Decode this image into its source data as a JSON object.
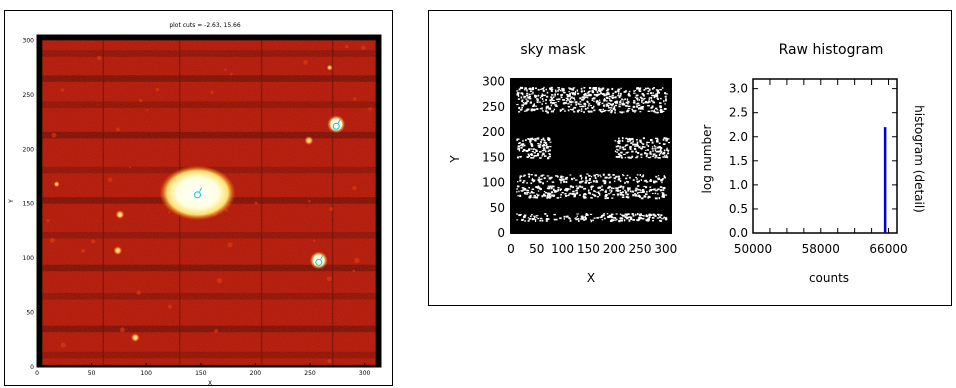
{
  "chart_data": [
    {
      "type": "image",
      "title": "plot cuts = -2.63, 15.66",
      "xlabel": "X",
      "ylabel": "Y",
      "xlim": [
        0,
        315
      ],
      "ylim": [
        0,
        305
      ],
      "xticks": [
        0,
        50,
        100,
        150,
        200,
        250,
        300
      ],
      "yticks": [
        0,
        50,
        100,
        150,
        200,
        250,
        300
      ],
      "colormap": "red heat",
      "sources": [
        {
          "x": 147,
          "y": 160,
          "size": "large",
          "marked": true
        },
        {
          "x": 274,
          "y": 223,
          "size": "medium",
          "marked": true
        },
        {
          "x": 258,
          "y": 98,
          "size": "medium",
          "marked": true
        },
        {
          "x": 249,
          "y": 208,
          "size": "small",
          "marked": false
        },
        {
          "x": 76,
          "y": 140,
          "size": "small",
          "marked": false
        },
        {
          "x": 74,
          "y": 107,
          "size": "small",
          "marked": false
        },
        {
          "x": 90,
          "y": 27,
          "size": "small",
          "marked": false
        },
        {
          "x": 268,
          "y": 275,
          "size": "tiny",
          "marked": false
        },
        {
          "x": 18,
          "y": 168,
          "size": "tiny",
          "marked": false
        }
      ]
    },
    {
      "type": "heatmap",
      "title": "sky mask",
      "xlabel": "X",
      "ylabel": "Y",
      "xlim": [
        0,
        310
      ],
      "ylim": [
        0,
        305
      ],
      "xticks": [
        0,
        50,
        100,
        150,
        200,
        250,
        300
      ],
      "yticks": [
        0,
        50,
        100,
        150,
        200,
        250,
        300
      ],
      "mask_bands": [
        {
          "y0": 25,
          "y1": 40,
          "x0": 10,
          "x1": 300,
          "density": 0.55
        },
        {
          "y0": 70,
          "y1": 95,
          "x0": 10,
          "x1": 300,
          "density": 0.5
        },
        {
          "y0": 100,
          "y1": 118,
          "x0": 10,
          "x1": 300,
          "density": 0.4
        },
        {
          "y0": 150,
          "y1": 190,
          "x0": 10,
          "x1": 75,
          "density": 0.6
        },
        {
          "y0": 150,
          "y1": 190,
          "x0": 200,
          "x1": 305,
          "density": 0.55
        },
        {
          "y0": 240,
          "y1": 290,
          "x0": 10,
          "x1": 300,
          "density": 0.5
        }
      ]
    },
    {
      "type": "line",
      "title": "Raw histogram",
      "xlabel": "counts",
      "ylabel": "log number",
      "y2label": "histogram (detail)",
      "xlim": [
        50000,
        67000
      ],
      "ylim": [
        0,
        3.2
      ],
      "xticks": [
        50000,
        58000,
        66000
      ],
      "yticks": [
        0.0,
        0.5,
        1.0,
        1.5,
        2.0,
        2.5,
        3.0
      ],
      "series": [
        {
          "x": [
            65600,
            65600
          ],
          "y": [
            0,
            2.2
          ],
          "color": "#0000cc"
        }
      ]
    }
  ]
}
